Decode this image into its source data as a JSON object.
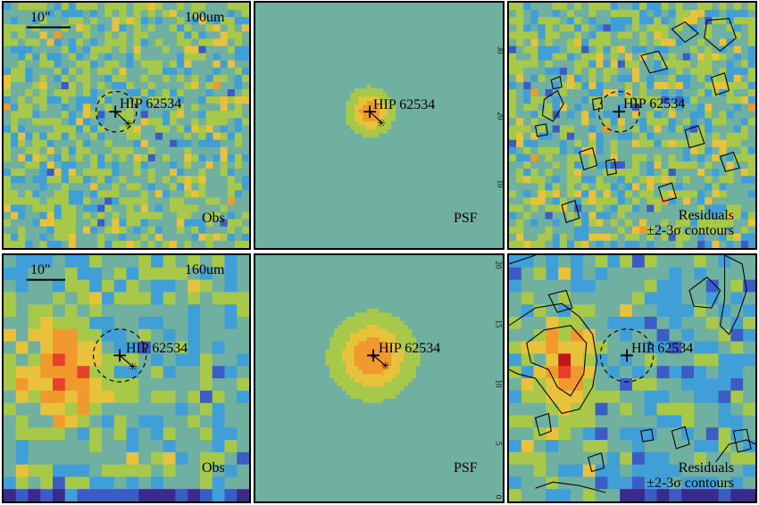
{
  "target_name": "HIP 62534",
  "scale_bar_label": "10\"",
  "rows": [
    {
      "band": "100um",
      "panels": [
        {
          "type": "obs",
          "label": "Obs"
        },
        {
          "type": "psf",
          "label": "PSF"
        },
        {
          "type": "res",
          "label_line1": "Residuals",
          "label_line2": "±2-3σ contours"
        }
      ],
      "axis_ticks": [
        "30",
        "20",
        "10"
      ]
    },
    {
      "band": "160um",
      "panels": [
        {
          "type": "obs",
          "label": "Obs"
        },
        {
          "type": "psf",
          "label": "PSF"
        },
        {
          "type": "res",
          "label_line1": "Residuals",
          "label_line2": "±2-3σ contours"
        }
      ],
      "axis_ticks": [
        "20",
        "15",
        "10",
        "5",
        "0"
      ]
    }
  ],
  "colors": {
    "psf_background": "#6fb0a0",
    "colormap": [
      "#3a2a8c",
      "#3b5cc4",
      "#3f9fd6",
      "#6fb0a0",
      "#a8c84a",
      "#e8c23a",
      "#f09a2e",
      "#e8402a",
      "#c01818"
    ]
  }
}
